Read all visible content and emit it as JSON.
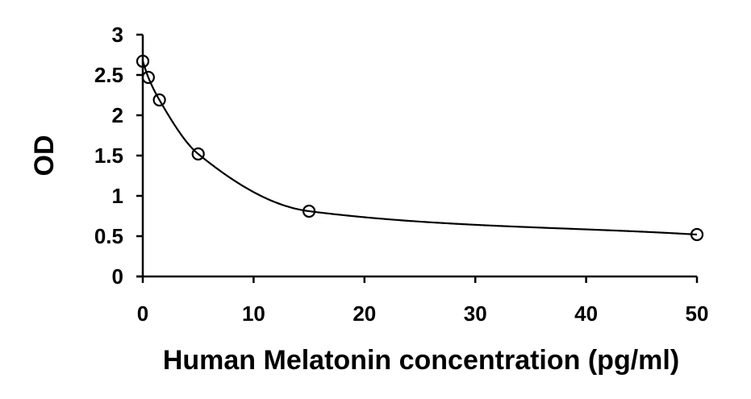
{
  "chart_data": {
    "type": "scatter",
    "title": "",
    "xlabel": "Human Melatonin concentration (pg/ml)",
    "ylabel": "OD",
    "xlim": [
      0,
      50
    ],
    "ylim": [
      0,
      3
    ],
    "x_ticks": [
      "0",
      "10",
      "20",
      "30",
      "40",
      "50"
    ],
    "y_ticks": [
      "0",
      "0.5",
      "1",
      "1.5",
      "2",
      "2.5",
      "3"
    ],
    "grid": false,
    "legend": "none",
    "series": [
      {
        "points": [
          {
            "x": 0,
            "y": 2.67
          },
          {
            "x": 0.5,
            "y": 2.47
          },
          {
            "x": 1.5,
            "y": 2.19
          },
          {
            "x": 5,
            "y": 1.52
          },
          {
            "x": 15,
            "y": 0.81
          },
          {
            "x": 50,
            "y": 0.52
          }
        ],
        "marker": "open-circle",
        "fit_line": "smooth decreasing curve"
      }
    ],
    "colors": {
      "line": "#000000",
      "marker": "#000000",
      "background": "#ffffff"
    }
  }
}
